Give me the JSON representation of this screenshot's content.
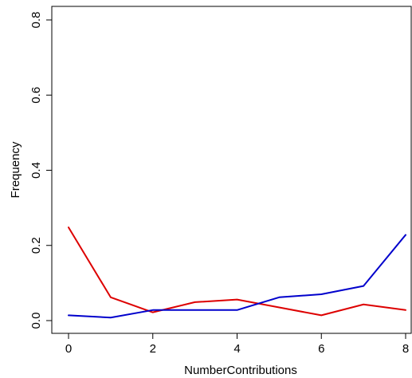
{
  "chart_data": {
    "type": "line",
    "title": "",
    "xlabel": "NumberContributions",
    "ylabel": "Frequency",
    "xlim": [
      0,
      8
    ],
    "ylim": [
      0,
      0.8
    ],
    "xticks": [
      0,
      2,
      4,
      6,
      8
    ],
    "xtick_labels": [
      "0",
      "2",
      "4",
      "6",
      "8"
    ],
    "yticks": [
      0.0,
      0.2,
      0.4,
      0.6,
      0.8
    ],
    "ytick_labels": [
      "0.0",
      "0.2",
      "0.4",
      "0.6",
      "0.8"
    ],
    "grid": false,
    "legend": "none",
    "x": [
      0,
      1,
      2,
      3,
      4,
      5,
      6,
      7,
      8
    ],
    "series": [
      {
        "color": "#dd0000",
        "values": [
          0.248,
          0.062,
          0.022,
          0.049,
          0.056,
          0.035,
          0.014,
          0.043,
          0.028
        ]
      },
      {
        "color": "#0000cc",
        "values": [
          0.014,
          0.008,
          0.028,
          0.028,
          0.028,
          0.062,
          0.07,
          0.092,
          0.228
        ]
      }
    ]
  }
}
